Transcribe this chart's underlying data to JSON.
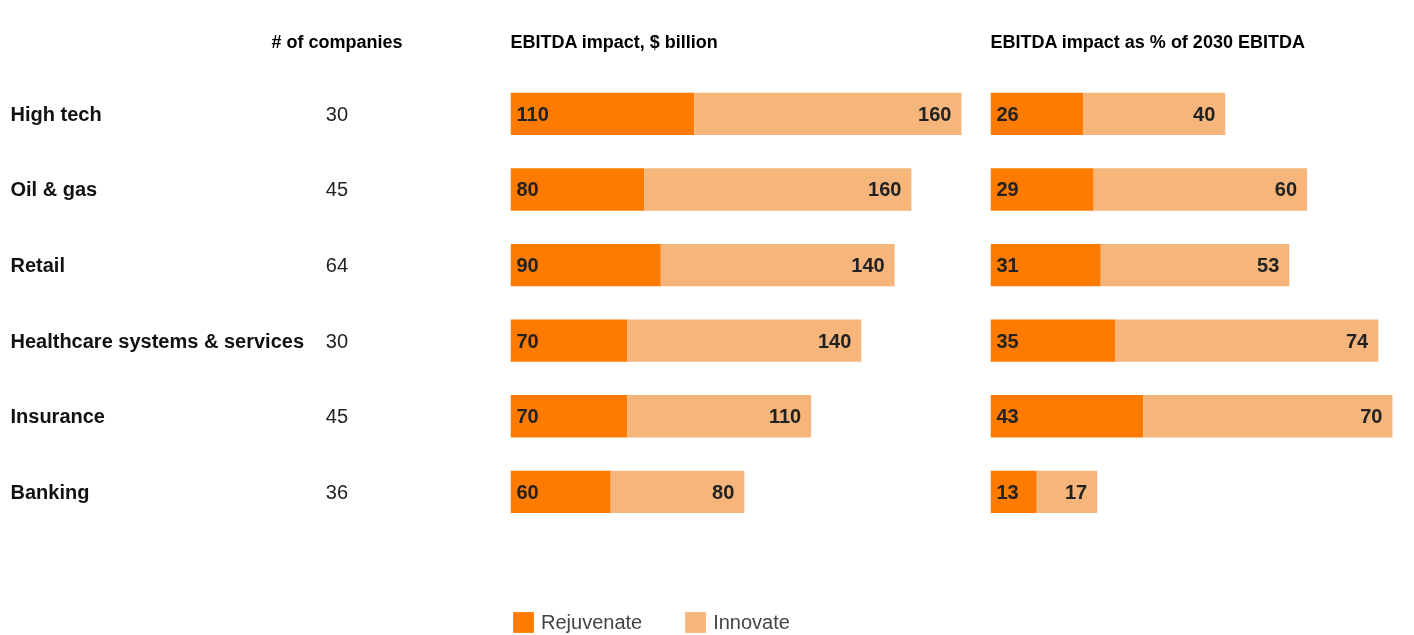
{
  "chart_data": [
    {
      "type": "other",
      "title": "# of companies",
      "categories": [
        "High tech",
        "Oil & gas",
        "Retail",
        "Healthcare systems & services",
        "Insurance",
        "Banking"
      ],
      "values": [
        30,
        45,
        64,
        30,
        45,
        36
      ],
      "data_labels": true
    },
    {
      "type": "bar",
      "orientation": "horizontal",
      "stacked": true,
      "title": "EBITDA impact, $ billion",
      "categories": [
        null,
        null,
        null,
        null,
        null,
        null
      ],
      "data_labels": true,
      "legend": "bottom left",
      "grid": false,
      "series": [
        {
          "name": "Rejuvenate",
          "color": "#ff7b00",
          "values": [
            110,
            80,
            90,
            70,
            70,
            60
          ]
        },
        {
          "name": "Innovate",
          "color": "#f6b57b",
          "values": [
            160,
            160,
            140,
            140,
            110,
            80
          ]
        }
      ]
    },
    {
      "type": "bar",
      "orientation": "horizontal",
      "stacked": true,
      "title": "EBITDA impact as % of 2030 EBITDA",
      "categories": [
        null,
        null,
        null,
        null,
        null,
        null
      ],
      "data_labels": true,
      "grid": false,
      "series": [
        {
          "color": "#ff7b00",
          "values": [
            26,
            29,
            31,
            35,
            43,
            13
          ]
        },
        {
          "color": "#f6b57b",
          "values": [
            40,
            60,
            53,
            74,
            70,
            17
          ]
        }
      ]
    }
  ]
}
